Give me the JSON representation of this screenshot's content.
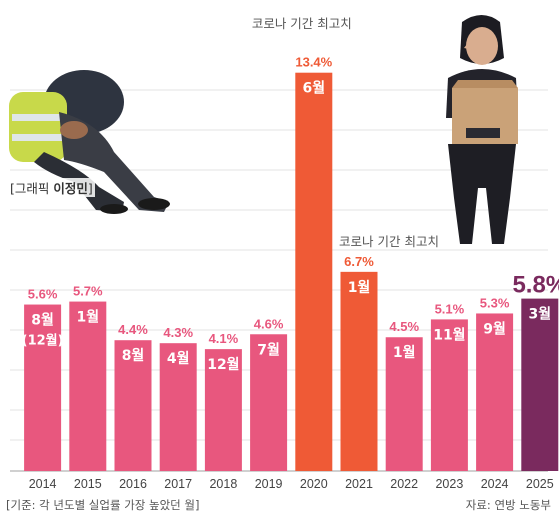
{
  "chart_data": {
    "type": "bar",
    "categories": [
      "2014",
      "2015",
      "2016",
      "2017",
      "2018",
      "2019",
      "2020",
      "2021",
      "2022",
      "2023",
      "2024",
      "2025"
    ],
    "values": [
      5.6,
      5.7,
      4.4,
      4.3,
      4.1,
      4.6,
      13.4,
      6.7,
      4.5,
      5.1,
      5.3,
      5.8
    ],
    "value_labels": [
      "5.6%",
      "5.7%",
      "4.4%",
      "4.3%",
      "4.1%",
      "4.6%",
      "13.4%",
      "6.7%",
      "4.5%",
      "5.1%",
      "5.3%",
      "5.8%"
    ],
    "month_labels": [
      "8월",
      "1월",
      "8월",
      "4월",
      "12월",
      "7월",
      "6월",
      "1월",
      "1월",
      "11월",
      "9월",
      "3월"
    ],
    "month_sublabels": [
      "(12월)",
      "",
      "",
      "",
      "",
      "",
      "",
      "",
      "",
      "",
      "",
      ""
    ],
    "bar_colors": [
      "#e8577e",
      "#e8577e",
      "#e8577e",
      "#e8577e",
      "#e8577e",
      "#e8577e",
      "#ef5a36",
      "#ef5a36",
      "#e8577e",
      "#e8577e",
      "#e8577e",
      "#7a2a5e"
    ],
    "label_colors": [
      "#e8577e",
      "#e8577e",
      "#e8577e",
      "#e8577e",
      "#e8577e",
      "#e8577e",
      "#ef5a36",
      "#ef5a36",
      "#e8577e",
      "#e8577e",
      "#e8577e",
      "#7a2a5e"
    ],
    "annotations": [
      {
        "category": "2020",
        "text": "코로나 기간 최고치"
      },
      {
        "category": "2021",
        "text": "코로나 기간 최고치"
      }
    ],
    "grid": true,
    "ylim": [
      0,
      14.5
    ]
  },
  "credit": {
    "prefix": "[그래픽 ",
    "name": "이정민",
    "suffix": "]"
  },
  "note": "[기준: 각 년도별 실업률 가장 높았던 월]",
  "source": "자료: 연방 노동부"
}
